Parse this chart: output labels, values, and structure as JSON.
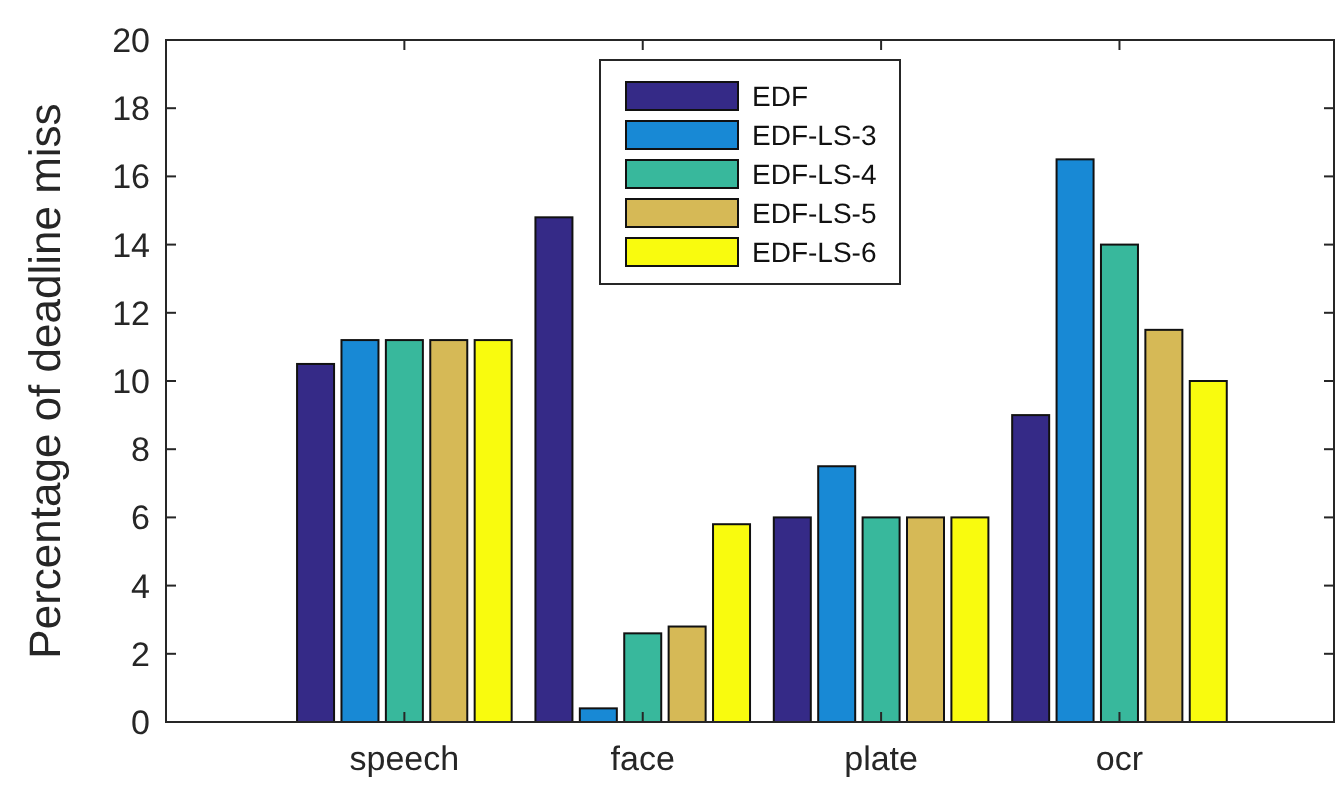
{
  "chart_data": {
    "type": "bar",
    "ylabel": "Percentage of deadline miss",
    "categories": [
      "speech",
      "face",
      "plate",
      "ocr"
    ],
    "series": [
      {
        "name": "EDF",
        "color": "#352a87",
        "values": [
          10.5,
          14.8,
          6,
          9
        ]
      },
      {
        "name": "EDF-LS-3",
        "color": "#1889d5",
        "values": [
          11.2,
          0.4,
          7.5,
          16.5
        ]
      },
      {
        "name": "EDF-LS-4",
        "color": "#38b89c",
        "values": [
          11.2,
          2.6,
          6,
          14
        ]
      },
      {
        "name": "EDF-LS-5",
        "color": "#d6b956",
        "values": [
          11.2,
          2.8,
          6,
          11.5
        ]
      },
      {
        "name": "EDF-LS-6",
        "color": "#f9fb0e",
        "values": [
          11.2,
          5.8,
          6,
          10
        ]
      }
    ],
    "ylim": [
      0,
      20
    ],
    "yticks": [
      0,
      2,
      4,
      6,
      8,
      10,
      12,
      14,
      16,
      18,
      20
    ],
    "grid": false,
    "legend": "top"
  }
}
